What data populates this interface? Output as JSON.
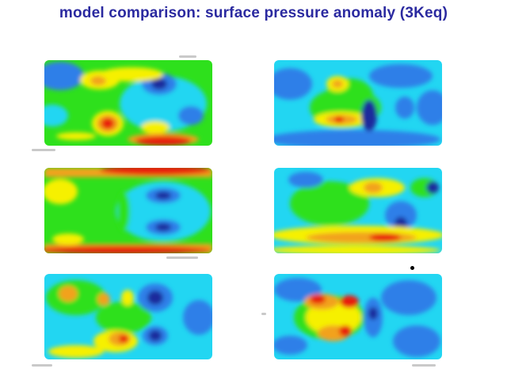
{
  "title": "model comparison: surface pressure anomaly (3Keq)",
  "colors": {
    "title": "#2b2aa0",
    "navy": "#1c2c9c",
    "blue": "#2f7fe8",
    "cyan": "#22d6f2",
    "green": "#2ee01c",
    "yellow": "#f6f000",
    "orange": "#f2a21a",
    "red": "#e81a10"
  },
  "panels": [
    {
      "name": "map-panel-1",
      "base": "green"
    },
    {
      "name": "map-panel-2",
      "base": "cyan"
    },
    {
      "name": "map-panel-3",
      "base": "green"
    },
    {
      "name": "map-panel-4",
      "base": "cyan"
    },
    {
      "name": "map-panel-5",
      "base": "cyan"
    },
    {
      "name": "map-panel-6",
      "base": "blue"
    }
  ]
}
